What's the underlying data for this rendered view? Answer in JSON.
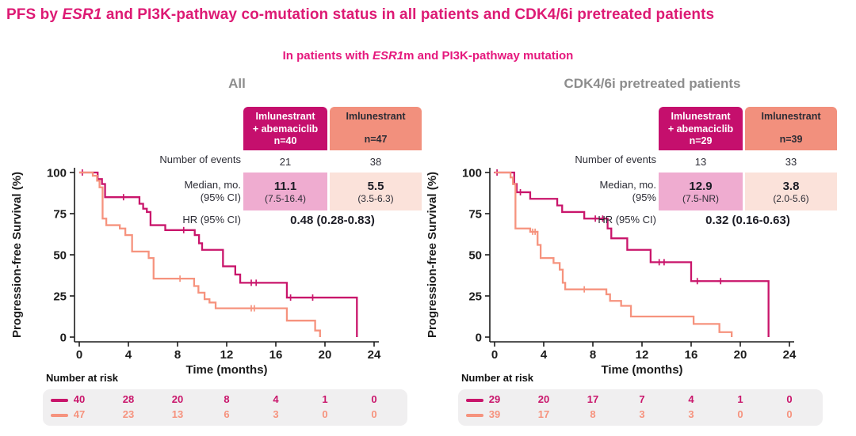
{
  "title": {
    "prefix": "PFS by ",
    "italic": "ESR1",
    "rest": " and PI3K-pathway co-mutation status in all patients and CDK4/6i pretreated patients"
  },
  "subtitle": {
    "prefix": "In patients with ",
    "italic": "ESR1",
    "rest": "m and PI3K-pathway mutation"
  },
  "colors": {
    "accent_pink": "#dd1a74",
    "heading_gray": "#8d8d8d",
    "arm1_color": "#c9156b",
    "arm2_color": "#f6937e",
    "header_magenta": "#c50f6d",
    "header_salmon": "#f2907d",
    "cell_pink": "#efacd0",
    "cell_peach": "#fbe2da",
    "risk_panel_gray": "#f0eff0"
  },
  "panels": [
    {
      "heading": "All",
      "table": {
        "col1_header_line1": "Imlunestrant",
        "col1_header_line2": "+ abemaciclib",
        "col1_header_n": "n=40",
        "col2_header_line1": "Imlunestrant",
        "col2_header_n": "n=47",
        "events_label": "Number of events",
        "events_col1": "21",
        "events_col2": "38",
        "median_label_line1": "Median, mo.",
        "median_label_line2": "(95% CI)",
        "median_col1_value": "11.1",
        "median_col1_ci": "(7.5-16.4)",
        "median_col2_value": "5.5",
        "median_col2_ci": "(3.5-6.3)",
        "hr_label": "HR (95% CI)",
        "hr_value": "0.48 (0.28-0.83)"
      },
      "risk_label": "Number at risk"
    },
    {
      "heading": "CDK4/6i pretreated patients",
      "table": {
        "col1_header_line1": "Imlunestrant",
        "col1_header_line2": "+ abemaciclib",
        "col1_header_n": "n=29",
        "col2_header_line1": "Imlunestrant",
        "col2_header_n": "n=39",
        "events_label": "Number of events",
        "events_col1": "13",
        "events_col2": "33",
        "median_label_line1": "Median, mo.",
        "median_label_line2": "(95%",
        "median_col1_value": "12.9",
        "median_col1_ci": "(7.5-NR)",
        "median_col2_value": "3.8",
        "median_col2_ci": "(2.0-5.6)",
        "hr_label": "HR (95% CI)",
        "hr_value": "0.32 (0.16-0.63)"
      },
      "risk_label": "Number at risk"
    }
  ],
  "chart_data": [
    {
      "type": "line",
      "title": "All",
      "xlabel": "Time (months)",
      "ylabel": "Progression-free Survival (%)",
      "xlim": [
        0,
        24
      ],
      "ylim": [
        0,
        100
      ],
      "xticks": [
        0,
        4,
        8,
        12,
        16,
        20,
        24
      ],
      "yticks": [
        0,
        25,
        50,
        75,
        100
      ],
      "grid": false,
      "legend_position": "none",
      "series": [
        {
          "name": "Imlunestrant + abemaciclib",
          "n": 40,
          "color": "#c9156b",
          "steps": [
            [
              0,
              100
            ],
            [
              1.5,
              96
            ],
            [
              1.85,
              93
            ],
            [
              2.1,
              85
            ],
            [
              4.9,
              81
            ],
            [
              5.2,
              78
            ],
            [
              5.5,
              76
            ],
            [
              5.8,
              68
            ],
            [
              7.0,
              65
            ],
            [
              9.4,
              62
            ],
            [
              9.75,
              57
            ],
            [
              10.0,
              53
            ],
            [
              11.7,
              43
            ],
            [
              12.7,
              38
            ],
            [
              13.1,
              33
            ],
            [
              16.9,
              24
            ],
            [
              22.6,
              0
            ]
          ],
          "censors": [
            [
              0.25,
              100
            ],
            [
              3.6,
              85
            ],
            [
              8.5,
              65
            ],
            [
              14.0,
              33
            ],
            [
              14.4,
              33
            ],
            [
              17.2,
              24
            ],
            [
              19.0,
              24
            ]
          ],
          "at_risk": [
            40,
            28,
            20,
            8,
            4,
            1,
            0
          ]
        },
        {
          "name": "Imlunestrant",
          "n": 47,
          "color": "#f6937e",
          "steps": [
            [
              0,
              100
            ],
            [
              1.1,
              98
            ],
            [
              1.45,
              95
            ],
            [
              1.65,
              91
            ],
            [
              1.9,
              72
            ],
            [
              2.2,
              68
            ],
            [
              3.3,
              66
            ],
            [
              3.75,
              62
            ],
            [
              4.3,
              52
            ],
            [
              5.65,
              48
            ],
            [
              6.05,
              35.5
            ],
            [
              9.35,
              31
            ],
            [
              9.7,
              27
            ],
            [
              10.2,
              23
            ],
            [
              10.6,
              21
            ],
            [
              11.1,
              17.5
            ],
            [
              16.9,
              10
            ],
            [
              19.2,
              4
            ],
            [
              19.6,
              0
            ]
          ],
          "censors": [
            [
              8.2,
              35.5
            ],
            [
              14.0,
              17.5
            ],
            [
              14.25,
              17.5
            ]
          ],
          "at_risk": [
            47,
            23,
            13,
            6,
            3,
            0,
            0
          ]
        }
      ],
      "annotations": {
        "median_arm1": "11.1 (7.5-16.4)",
        "median_arm2": "5.5 (3.5-6.3)",
        "hr": "0.48 (0.28-0.83)",
        "events_arm1": 21,
        "events_arm2": 38
      }
    },
    {
      "type": "line",
      "title": "CDK4/6i pretreated patients",
      "xlabel": "Time (months)",
      "ylabel": "Progression-free Survival (%)",
      "xlim": [
        0,
        24
      ],
      "ylim": [
        0,
        100
      ],
      "xticks": [
        0,
        4,
        8,
        12,
        16,
        20,
        24
      ],
      "yticks": [
        0,
        25,
        50,
        75,
        100
      ],
      "grid": false,
      "legend_position": "none",
      "series": [
        {
          "name": "Imlunestrant + abemaciclib",
          "n": 29,
          "color": "#c9156b",
          "steps": [
            [
              0,
              100
            ],
            [
              1.6,
              93
            ],
            [
              1.8,
              88
            ],
            [
              2.9,
              84
            ],
            [
              5.1,
              80
            ],
            [
              5.5,
              76
            ],
            [
              7.3,
              72
            ],
            [
              9.2,
              66
            ],
            [
              9.5,
              60
            ],
            [
              10.8,
              53
            ],
            [
              12.7,
              45.5
            ],
            [
              16.0,
              34
            ],
            [
              22.3,
              0
            ]
          ],
          "censors": [
            [
              0.2,
              100
            ],
            [
              2.1,
              88
            ],
            [
              8.2,
              72
            ],
            [
              8.8,
              72
            ],
            [
              13.4,
              45.5
            ],
            [
              13.8,
              45.5
            ],
            [
              16.5,
              34
            ],
            [
              18.4,
              34
            ]
          ],
          "at_risk": [
            29,
            20,
            17,
            7,
            4,
            1,
            0
          ]
        },
        {
          "name": "Imlunestrant",
          "n": 39,
          "color": "#f6937e",
          "steps": [
            [
              0,
              100
            ],
            [
              1.3,
              97
            ],
            [
              1.5,
              93
            ],
            [
              1.7,
              66
            ],
            [
              2.9,
              64
            ],
            [
              3.5,
              56
            ],
            [
              3.75,
              48
            ],
            [
              4.8,
              45
            ],
            [
              5.3,
              41
            ],
            [
              5.55,
              33
            ],
            [
              5.75,
              29
            ],
            [
              9.1,
              26
            ],
            [
              9.4,
              22
            ],
            [
              10.3,
              19
            ],
            [
              11.1,
              12.5
            ],
            [
              16.2,
              8
            ],
            [
              18.3,
              3
            ],
            [
              19.3,
              0
            ]
          ],
          "censors": [
            [
              3.1,
              64
            ],
            [
              3.3,
              64
            ],
            [
              7.3,
              29
            ]
          ],
          "at_risk": [
            39,
            17,
            8,
            3,
            3,
            0,
            0
          ]
        }
      ],
      "annotations": {
        "median_arm1": "12.9 (7.5-NR)",
        "median_arm2": "3.8 (2.0-5.6)",
        "hr": "0.32 (0.16-0.63)",
        "events_arm1": 13,
        "events_arm2": 33
      }
    }
  ]
}
